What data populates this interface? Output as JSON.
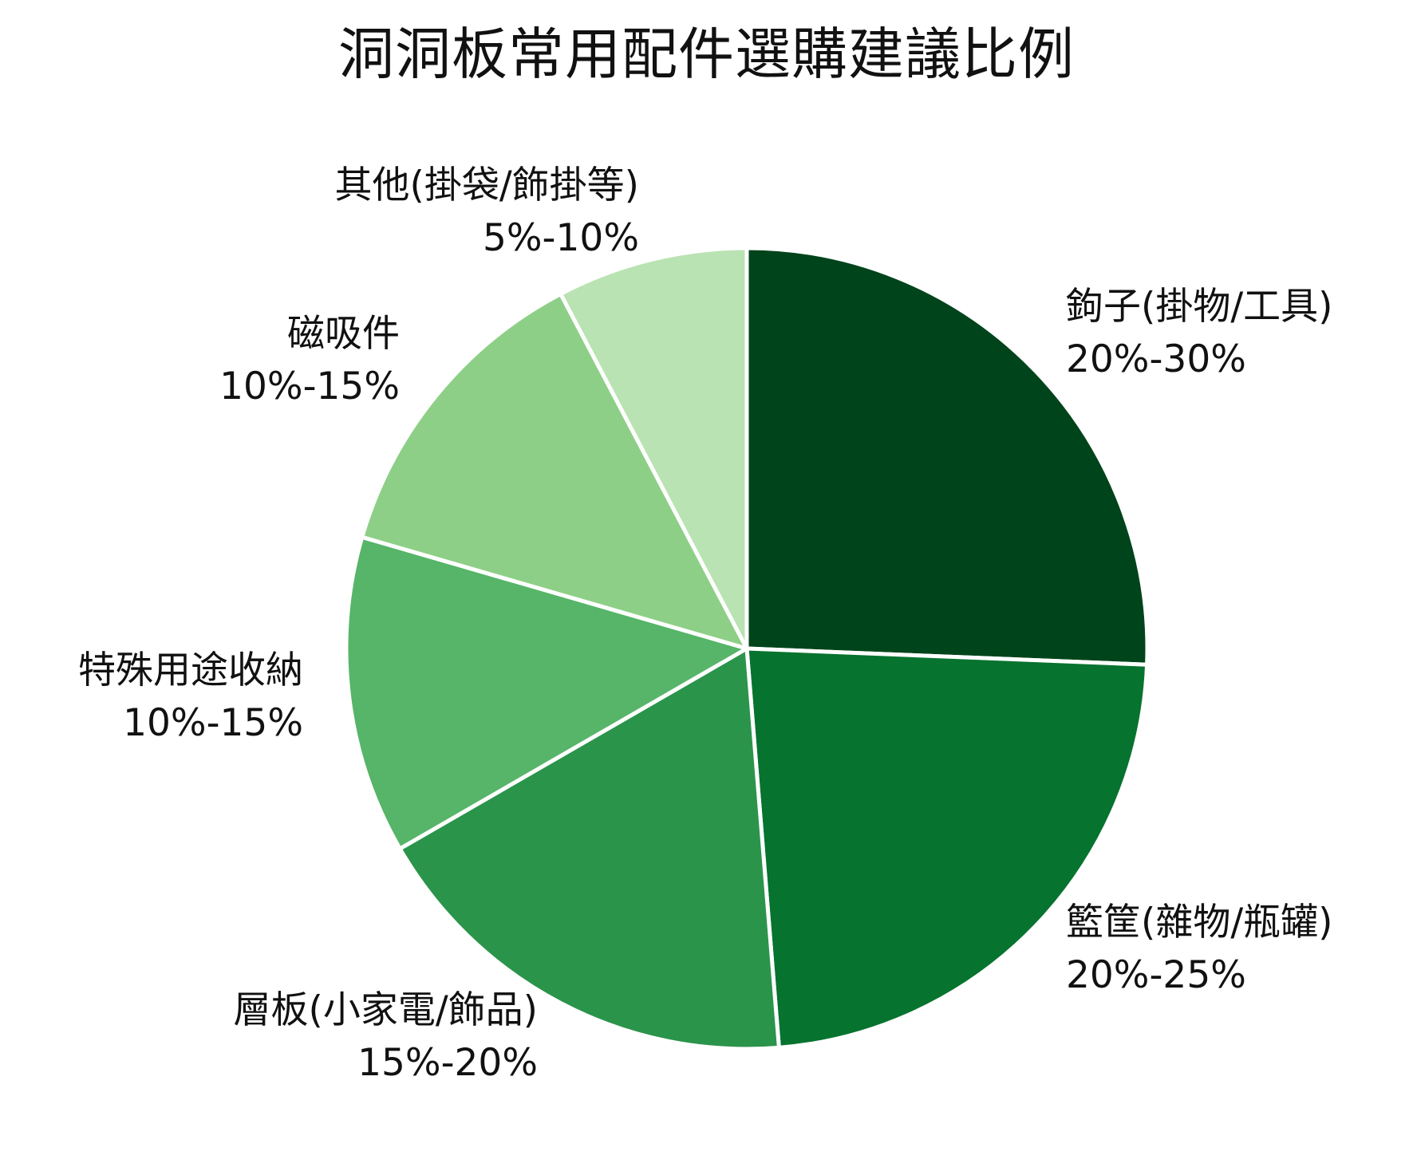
{
  "title": "洞洞板常用配件選購建議比例",
  "chart_data": {
    "type": "pie",
    "title": "洞洞板常用配件選購建議比例",
    "start_angle_deg": 90,
    "direction": "clockwise",
    "categories": [
      "鉤子(掛物/工具)",
      "籃筐(雜物/瓶罐)",
      "層板(小家電/飾品)",
      "特殊用途收納",
      "磁吸件",
      "其他(掛袋/飾掛等)"
    ],
    "ranges": [
      "20%-30%",
      "20%-25%",
      "15%-20%",
      "10%-15%",
      "10%-15%",
      "5%-10%"
    ],
    "values": [
      25,
      22.5,
      17.5,
      12.5,
      12.5,
      7.5
    ],
    "colors": [
      "#00441b",
      "#06732f",
      "#2b944b",
      "#56b568",
      "#8ecf87",
      "#b9e3b2"
    ],
    "legend": "none (direct labels)"
  },
  "labels": [
    {
      "name": "鉤子(掛物/工具)",
      "range": "20%-30%"
    },
    {
      "name": "籃筐(雜物/瓶罐)",
      "range": "20%-25%"
    },
    {
      "name": "層板(小家電/飾品)",
      "range": "15%-20%"
    },
    {
      "name": "特殊用途收納",
      "range": "10%-15%"
    },
    {
      "name": "磁吸件",
      "range": "10%-15%"
    },
    {
      "name": "其他(掛袋/飾掛等)",
      "range": "5%-10%"
    }
  ]
}
